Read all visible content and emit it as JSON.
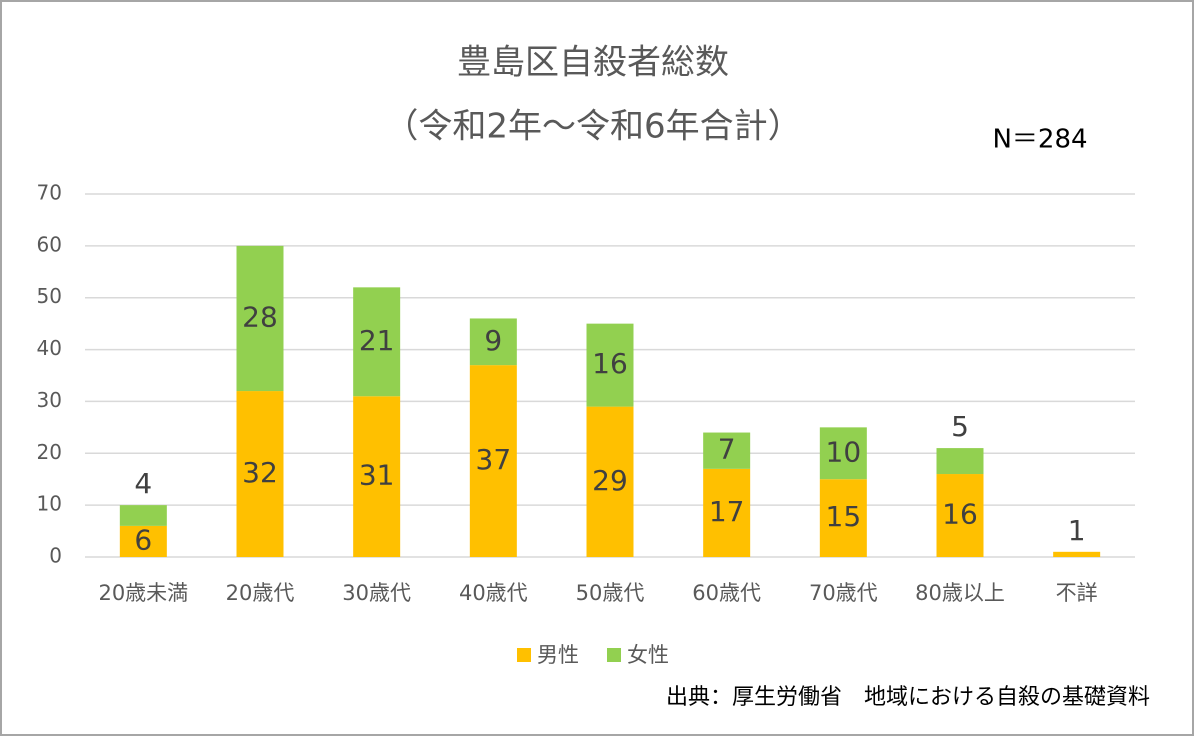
{
  "chart_data": {
    "type": "stacked_bar",
    "title": "豊島区自殺者総数",
    "subtitle": "（令和2年～令和6年合計）",
    "annotation": "N＝284",
    "source": "出典：厚生労働省　地域における自殺の基礎資料",
    "categories": [
      "20歳未満",
      "20歳代",
      "30歳代",
      "40歳代",
      "50歳代",
      "60歳代",
      "70歳代",
      "80歳以上",
      "不詳"
    ],
    "series": [
      {
        "name": "男性",
        "color": "#ffc000",
        "values": [
          6,
          32,
          31,
          37,
          29,
          17,
          15,
          16,
          1
        ]
      },
      {
        "name": "女性",
        "color": "#92d050",
        "values": [
          4,
          28,
          21,
          9,
          16,
          7,
          10,
          5,
          null
        ]
      }
    ],
    "ylim": [
      0,
      70
    ],
    "yticks": [
      0,
      10,
      20,
      30,
      40,
      50,
      60,
      70
    ],
    "grid": true,
    "legend": "bottom"
  }
}
